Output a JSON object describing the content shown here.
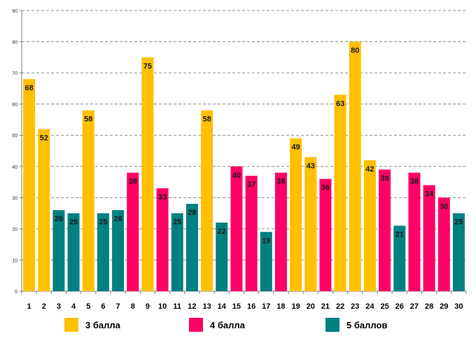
{
  "chart_data": {
    "type": "bar",
    "title": "",
    "xlabel": "",
    "ylabel": "",
    "ylim": [
      0,
      90
    ],
    "y_ticks": [
      0,
      10,
      20,
      30,
      40,
      50,
      60,
      70,
      80,
      90
    ],
    "grid": true,
    "categories": [
      "1",
      "2",
      "3",
      "4",
      "5",
      "6",
      "7",
      "8",
      "9",
      "10",
      "11",
      "12",
      "13",
      "14",
      "15",
      "16",
      "17",
      "18",
      "19",
      "20",
      "21",
      "22",
      "23",
      "24",
      "25",
      "26",
      "27",
      "28",
      "29",
      "30"
    ],
    "values": [
      68,
      52,
      26,
      25,
      58,
      25,
      26,
      38,
      75,
      33,
      25,
      28,
      58,
      22,
      40,
      37,
      19,
      38,
      49,
      43,
      36,
      63,
      80,
      42,
      39,
      21,
      38,
      34,
      30,
      25
    ],
    "groups": [
      "3",
      "3",
      "5",
      "5",
      "3",
      "5",
      "5",
      "4",
      "3",
      "4",
      "5",
      "5",
      "3",
      "5",
      "4",
      "4",
      "5",
      "4",
      "3",
      "3",
      "4",
      "3",
      "3",
      "3",
      "4",
      "5",
      "4",
      "4",
      "4",
      "5"
    ],
    "colors": {
      "3": "#FFC000",
      "4": "#FF0066",
      "5": "#008080"
    },
    "legend_position": "bottom",
    "legend": [
      {
        "key": "3",
        "label": "3 балла"
      },
      {
        "key": "4",
        "label": "4 балла"
      },
      {
        "key": "5",
        "label": "5 баллов"
      }
    ]
  }
}
